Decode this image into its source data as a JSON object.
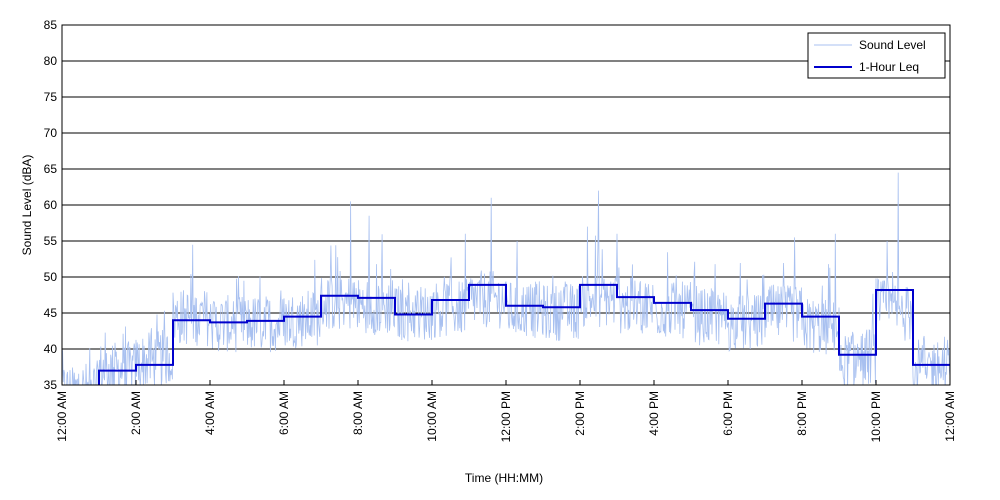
{
  "chart_data": {
    "type": "line",
    "xlabel": "Time (HH:MM)",
    "ylabel": "Sound Level (dBA)",
    "xlim": [
      0,
      24
    ],
    "ylim": [
      35,
      85
    ],
    "x_ticks": [
      {
        "x": 0,
        "label": "12:00 AM"
      },
      {
        "x": 2,
        "label": "2:00 AM"
      },
      {
        "x": 4,
        "label": "4:00 AM"
      },
      {
        "x": 6,
        "label": "6:00 AM"
      },
      {
        "x": 8,
        "label": "8:00 AM"
      },
      {
        "x": 10,
        "label": "10:00 AM"
      },
      {
        "x": 12,
        "label": "12:00 PM"
      },
      {
        "x": 14,
        "label": "2:00 PM"
      },
      {
        "x": 16,
        "label": "4:00 PM"
      },
      {
        "x": 18,
        "label": "6:00 PM"
      },
      {
        "x": 20,
        "label": "8:00 PM"
      },
      {
        "x": 22,
        "label": "10:00 PM"
      },
      {
        "x": 24,
        "label": "12:00 AM"
      }
    ],
    "y_ticks": [
      35,
      40,
      45,
      50,
      55,
      60,
      65,
      70,
      75,
      80,
      85
    ],
    "grid": "horizontal",
    "legend": {
      "position": "top-right"
    },
    "series": [
      {
        "name": "Sound Level",
        "color": "#a8c0f0",
        "style": "thin-noisy",
        "hourly_approx": [
          34,
          37,
          38,
          44.5,
          43.5,
          43.5,
          44,
          46.5,
          46,
          45,
          45.5,
          47,
          45.5,
          45,
          47,
          46,
          45.5,
          44.5,
          43.5,
          45,
          43.5,
          38,
          46,
          37.5
        ],
        "peaks": [
          {
            "x": 7.8,
            "y": 60.5
          },
          {
            "x": 8.3,
            "y": 58.5
          },
          {
            "x": 10.9,
            "y": 56
          },
          {
            "x": 11.6,
            "y": 61
          },
          {
            "x": 12.3,
            "y": 55
          },
          {
            "x": 14.5,
            "y": 62
          },
          {
            "x": 14.2,
            "y": 57
          },
          {
            "x": 15.0,
            "y": 56
          },
          {
            "x": 19.8,
            "y": 55.5
          },
          {
            "x": 20.9,
            "y": 56
          },
          {
            "x": 22.6,
            "y": 64.5
          },
          {
            "x": 22.3,
            "y": 55
          }
        ]
      },
      {
        "name": "1-Hour Leq",
        "color": "#0000cc",
        "style": "step",
        "x": [
          1,
          2,
          3,
          4,
          5,
          6,
          7,
          8,
          9,
          10,
          11,
          12,
          13,
          14,
          15,
          16,
          17,
          18,
          19,
          20,
          21,
          22,
          23
        ],
        "values": [
          37.0,
          37.8,
          44.0,
          43.7,
          43.9,
          44.5,
          47.4,
          47.1,
          44.8,
          46.8,
          48.9,
          46.0,
          45.8,
          48.9,
          47.2,
          46.4,
          45.4,
          44.2,
          46.3,
          44.5,
          39.2,
          48.2,
          37.8
        ]
      }
    ]
  }
}
